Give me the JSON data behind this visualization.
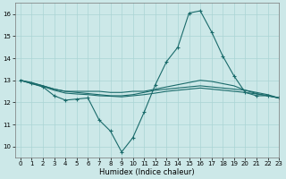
{
  "title": "",
  "xlabel": "Humidex (Indice chaleur)",
  "xlim": [
    -0.5,
    23
  ],
  "ylim": [
    9.5,
    16.5
  ],
  "yticks": [
    10,
    11,
    12,
    13,
    14,
    15,
    16
  ],
  "xticks": [
    0,
    1,
    2,
    3,
    4,
    5,
    6,
    7,
    8,
    9,
    10,
    11,
    12,
    13,
    14,
    15,
    16,
    17,
    18,
    19,
    20,
    21,
    22,
    23
  ],
  "background_color": "#cce8e8",
  "grid_color": "#aad4d4",
  "line_color": "#1a6b6b",
  "lines": [
    {
      "x": [
        0,
        1,
        2,
        3,
        4,
        5,
        6,
        7,
        8,
        9,
        10,
        11,
        12,
        13,
        14,
        15,
        16,
        17,
        18,
        19,
        20,
        21,
        22,
        23
      ],
      "y": [
        13.0,
        12.85,
        12.7,
        12.3,
        12.1,
        12.15,
        12.2,
        11.2,
        10.7,
        9.75,
        10.4,
        11.55,
        12.8,
        13.85,
        14.5,
        16.05,
        16.15,
        15.2,
        14.1,
        13.2,
        12.45,
        12.3,
        12.3,
        12.2
      ],
      "marker": "+",
      "lw": 0.8,
      "ms": 3
    },
    {
      "x": [
        0,
        1,
        2,
        3,
        4,
        5,
        6,
        7,
        8,
        9,
        10,
        11,
        12,
        13,
        14,
        15,
        16,
        17,
        18,
        19,
        20,
        21,
        22,
        23
      ],
      "y": [
        13.0,
        12.9,
        12.75,
        12.6,
        12.5,
        12.5,
        12.5,
        12.5,
        12.45,
        12.45,
        12.5,
        12.5,
        12.6,
        12.7,
        12.8,
        12.9,
        13.0,
        12.95,
        12.85,
        12.75,
        12.55,
        12.4,
        12.3,
        12.2
      ],
      "marker": null,
      "lw": 0.8,
      "ms": null
    },
    {
      "x": [
        0,
        1,
        2,
        3,
        4,
        5,
        6,
        7,
        8,
        9,
        10,
        11,
        12,
        13,
        14,
        15,
        16,
        17,
        18,
        19,
        20,
        21,
        22,
        23
      ],
      "y": [
        13.0,
        12.88,
        12.75,
        12.6,
        12.5,
        12.45,
        12.4,
        12.35,
        12.3,
        12.3,
        12.35,
        12.45,
        12.55,
        12.6,
        12.65,
        12.7,
        12.75,
        12.7,
        12.65,
        12.6,
        12.55,
        12.45,
        12.35,
        12.2
      ],
      "marker": null,
      "lw": 0.8,
      "ms": null
    },
    {
      "x": [
        0,
        1,
        2,
        3,
        4,
        5,
        6,
        7,
        8,
        9,
        10,
        11,
        12,
        13,
        14,
        15,
        16,
        17,
        18,
        19,
        20,
        21,
        22,
        23
      ],
      "y": [
        13.0,
        12.85,
        12.72,
        12.55,
        12.42,
        12.38,
        12.35,
        12.3,
        12.28,
        12.25,
        12.3,
        12.35,
        12.42,
        12.5,
        12.55,
        12.6,
        12.65,
        12.6,
        12.55,
        12.5,
        12.45,
        12.38,
        12.3,
        12.2
      ],
      "marker": null,
      "lw": 0.8,
      "ms": null
    }
  ]
}
